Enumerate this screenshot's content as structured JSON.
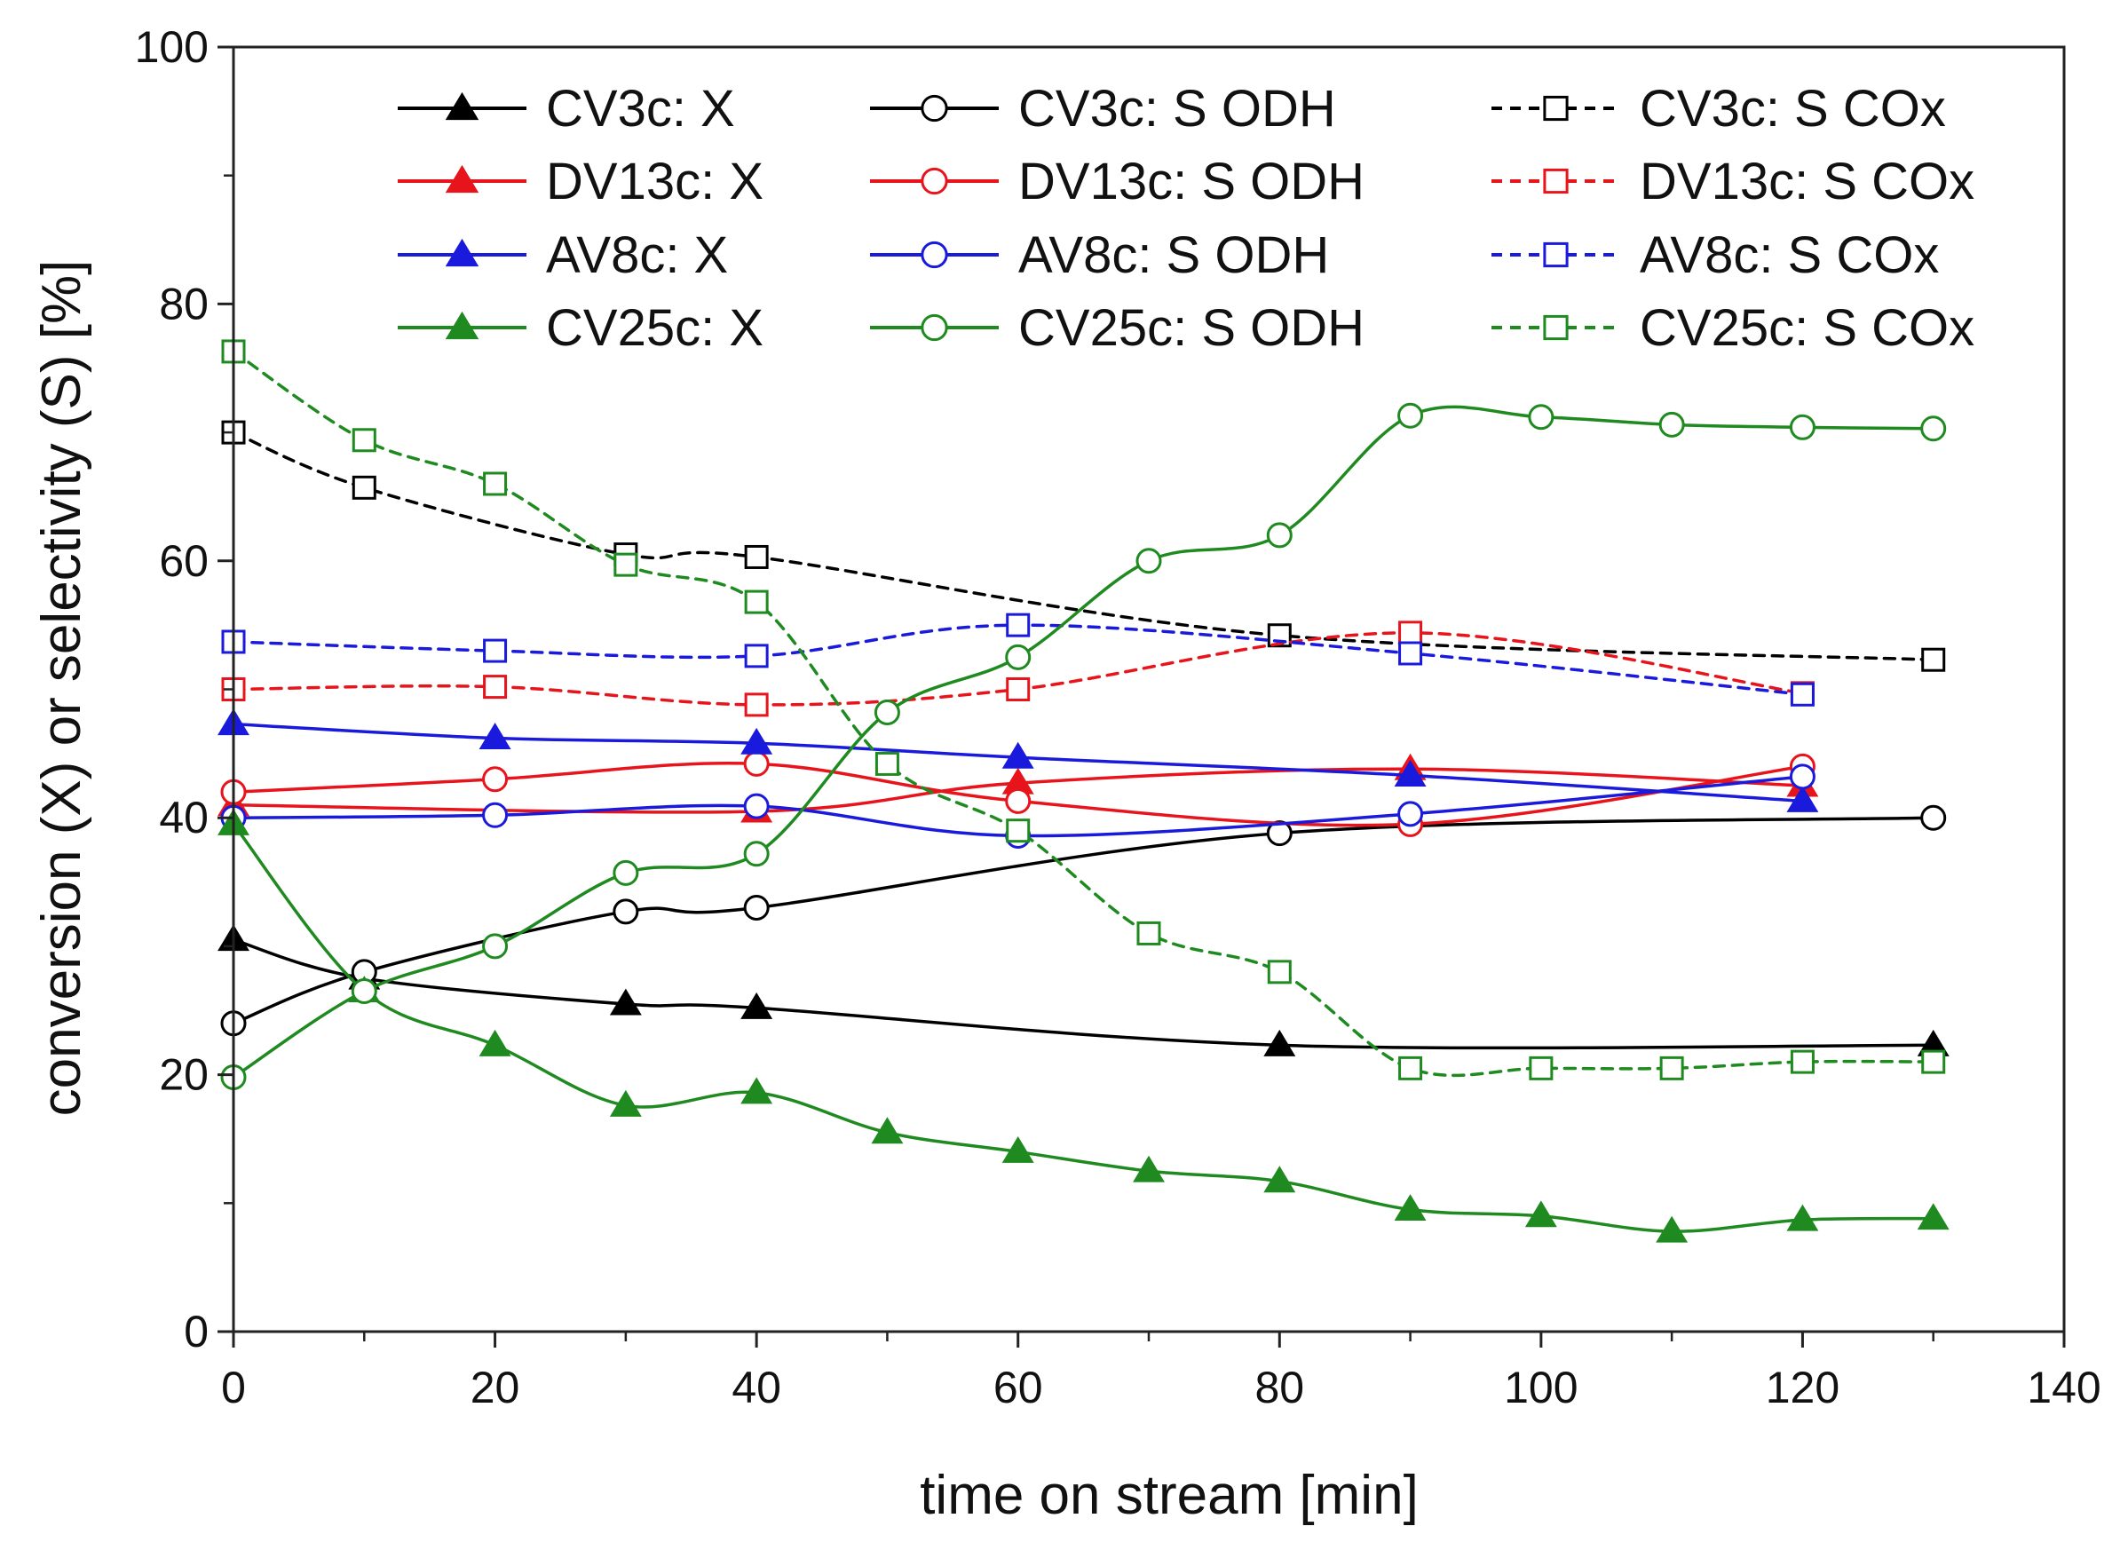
{
  "chart_data": {
    "type": "line",
    "xlabel": "time on stream [min]",
    "ylabel": "conversion (X) or selectivity (S) [%]",
    "xlim": [
      0,
      140
    ],
    "ylim": [
      0,
      100
    ],
    "x_ticks": [
      "0",
      "20",
      "40",
      "60",
      "80",
      "100",
      "120",
      "140"
    ],
    "y_ticks": [
      "0",
      "20",
      "40",
      "60",
      "80",
      "100"
    ],
    "grid": false,
    "legend_position": "top",
    "series": [
      {
        "name": "CV3c: X",
        "color": "#000000",
        "marker": "triangle",
        "fill": true,
        "dash": "solid",
        "x": [
          0,
          10,
          30,
          40,
          80,
          130
        ],
        "y": [
          30.5,
          27.5,
          25.5,
          25.2,
          22.3,
          22.3
        ]
      },
      {
        "name": "CV3c: S ODH",
        "color": "#000000",
        "marker": "circle",
        "fill": false,
        "dash": "solid",
        "x": [
          0,
          10,
          30,
          40,
          80,
          130
        ],
        "y": [
          24.0,
          28.0,
          32.7,
          33.0,
          38.8,
          40.0
        ]
      },
      {
        "name": "CV3c: S COx",
        "color": "#000000",
        "marker": "square",
        "fill": false,
        "dash": "dashed",
        "x": [
          0,
          10,
          30,
          40,
          80,
          130
        ],
        "y": [
          70.0,
          65.7,
          60.5,
          60.3,
          54.2,
          52.3
        ]
      },
      {
        "name": "DV13c: X",
        "color": "#e8141c",
        "marker": "triangle",
        "fill": true,
        "dash": "solid",
        "x": [
          0,
          40,
          60,
          90,
          120
        ],
        "y": [
          41.0,
          40.5,
          42.7,
          43.8,
          42.5
        ]
      },
      {
        "name": "DV13c: S ODH",
        "color": "#e8141c",
        "marker": "circle",
        "fill": false,
        "dash": "solid",
        "x": [
          0,
          20,
          40,
          60,
          90,
          120
        ],
        "y": [
          42.0,
          43.0,
          44.2,
          41.3,
          39.5,
          44.0
        ]
      },
      {
        "name": "DV13c: S COx",
        "color": "#e8141c",
        "marker": "square",
        "fill": false,
        "dash": "dashed",
        "x": [
          0,
          20,
          40,
          60,
          90,
          120
        ],
        "y": [
          50.0,
          50.2,
          48.8,
          50.0,
          54.4,
          49.7
        ]
      },
      {
        "name": "AV8c: X",
        "color": "#1a1adc",
        "marker": "triangle",
        "fill": true,
        "dash": "solid",
        "x": [
          0,
          20,
          40,
          60,
          90,
          120
        ],
        "y": [
          47.3,
          46.2,
          45.8,
          44.7,
          43.3,
          41.3
        ]
      },
      {
        "name": "AV8c: S ODH",
        "color": "#1a1adc",
        "marker": "circle",
        "fill": false,
        "dash": "solid",
        "x": [
          0,
          20,
          40,
          60,
          90,
          120
        ],
        "y": [
          40.0,
          40.2,
          40.9,
          38.6,
          40.3,
          43.2
        ]
      },
      {
        "name": "AV8c: S COx",
        "color": "#1a1adc",
        "marker": "square",
        "fill": false,
        "dash": "dashed",
        "x": [
          0,
          20,
          40,
          60,
          90,
          120
        ],
        "y": [
          53.7,
          53.0,
          52.6,
          55.0,
          52.8,
          49.6
        ]
      },
      {
        "name": "CV25c: X",
        "color": "#1f8a1f",
        "marker": "triangle",
        "fill": true,
        "dash": "solid",
        "x": [
          0,
          10,
          20,
          30,
          40,
          50,
          60,
          70,
          80,
          90,
          100,
          110,
          120,
          130
        ],
        "y": [
          39.5,
          26.5,
          22.3,
          17.6,
          18.6,
          15.5,
          14.0,
          12.5,
          11.7,
          9.5,
          9.0,
          7.8,
          8.7,
          8.8
        ]
      },
      {
        "name": "CV25c: S ODH",
        "color": "#1f8a1f",
        "marker": "circle",
        "fill": false,
        "dash": "solid",
        "x": [
          0,
          10,
          20,
          30,
          40,
          50,
          60,
          70,
          80,
          90,
          100,
          110,
          120,
          130
        ],
        "y": [
          19.8,
          26.5,
          30.0,
          35.7,
          37.2,
          48.2,
          52.5,
          60.0,
          62.0,
          71.3,
          71.2,
          70.6,
          70.4,
          70.3
        ]
      },
      {
        "name": "CV25c: S COx",
        "color": "#1f8a1f",
        "marker": "square",
        "fill": false,
        "dash": "dashed",
        "x": [
          0,
          10,
          20,
          30,
          40,
          50,
          60,
          70,
          80,
          90,
          100,
          110,
          120,
          130
        ],
        "y": [
          76.3,
          69.4,
          66.0,
          59.7,
          56.8,
          44.2,
          39.0,
          31.0,
          28.0,
          20.5,
          20.5,
          20.5,
          21.0,
          21.0
        ]
      }
    ]
  }
}
